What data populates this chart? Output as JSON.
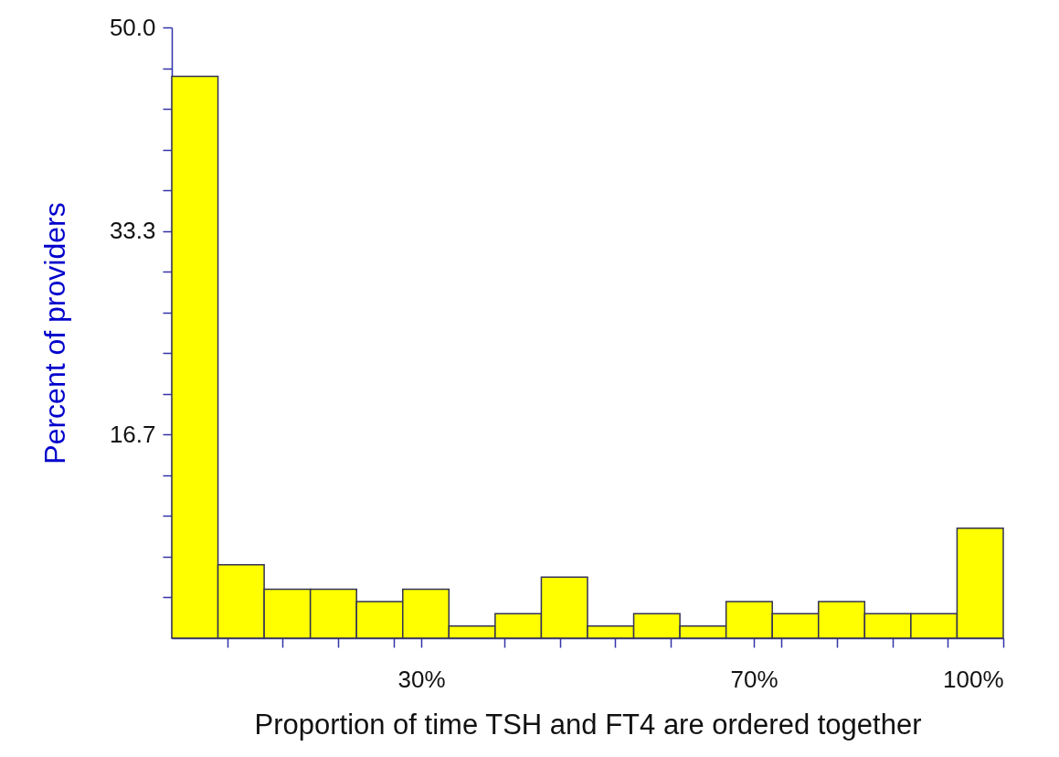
{
  "chart_data": {
    "type": "histogram",
    "xlabel": "Proportion of time TSH and FT4 are ordered together",
    "ylabel": "Percent of providers",
    "bins": [
      0,
      5.556,
      11.111,
      16.667,
      22.222,
      27.778,
      33.333,
      38.889,
      44.444,
      50,
      55.556,
      61.111,
      66.667,
      72.222,
      77.778,
      83.333,
      88.889,
      94.444,
      100
    ],
    "values": [
      46,
      6,
      4,
      4,
      3,
      4,
      1,
      2,
      5,
      1,
      2,
      1,
      3,
      2,
      3,
      2,
      2,
      9
    ],
    "color": "#ffff00",
    "xlim": [
      0,
      100
    ],
    "xticks": [
      {
        "value": 6.667,
        "label": null
      },
      {
        "value": 13.333,
        "label": null
      },
      {
        "value": 20,
        "label": null
      },
      {
        "value": 26.667,
        "label": null
      },
      {
        "value": 30,
        "label": "30%"
      },
      {
        "value": 40,
        "label": null
      },
      {
        "value": 46.667,
        "label": null
      },
      {
        "value": 53.333,
        "label": null
      },
      {
        "value": 60,
        "label": null
      },
      {
        "value": 70,
        "label": "70%"
      },
      {
        "value": 73.333,
        "label": null
      },
      {
        "value": 80,
        "label": null
      },
      {
        "value": 86.667,
        "label": null
      },
      {
        "value": 93.333,
        "label": null
      },
      {
        "value": 100,
        "label": "100%"
      }
    ],
    "ylim": [
      0,
      50
    ],
    "yticks": [
      {
        "value": 3.333,
        "label": null
      },
      {
        "value": 6.667,
        "label": null
      },
      {
        "value": 10,
        "label": null
      },
      {
        "value": 13.333,
        "label": null
      },
      {
        "value": 16.667,
        "label": "16.7"
      },
      {
        "value": 20,
        "label": null
      },
      {
        "value": 23.333,
        "label": null
      },
      {
        "value": 26.667,
        "label": null
      },
      {
        "value": 30,
        "label": null
      },
      {
        "value": 33.333,
        "label": "33.3"
      },
      {
        "value": 36.667,
        "label": null
      },
      {
        "value": 40,
        "label": null
      },
      {
        "value": 43.333,
        "label": null
      },
      {
        "value": 46.667,
        "label": null
      },
      {
        "value": 50,
        "label": "50.0"
      }
    ]
  }
}
